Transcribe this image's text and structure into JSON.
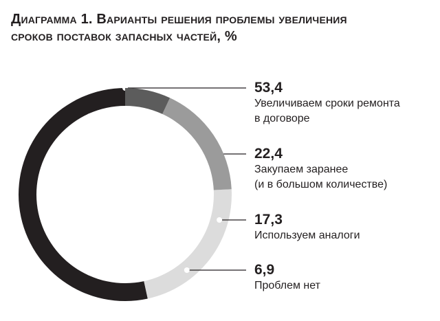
{
  "chart_data": {
    "type": "donut",
    "title": "Диаграмма 1. Варианты решения проблемы увеличения\nсроков поставок запасных частей, %",
    "categories": [
      "Увеличиваем сроки ремонта\nв договоре",
      "Закупаем заранее\n(и в большом количестве)",
      "Используем аналоги",
      "Проблем нет"
    ],
    "values": [
      53.4,
      22.4,
      17.3,
      6.9
    ],
    "value_labels": [
      "53,4",
      "22,4",
      "17,3",
      "6,9"
    ],
    "colors": [
      "#231f20",
      "#dcdcdc",
      "#9b9b9b",
      "#5c5c5c"
    ]
  }
}
